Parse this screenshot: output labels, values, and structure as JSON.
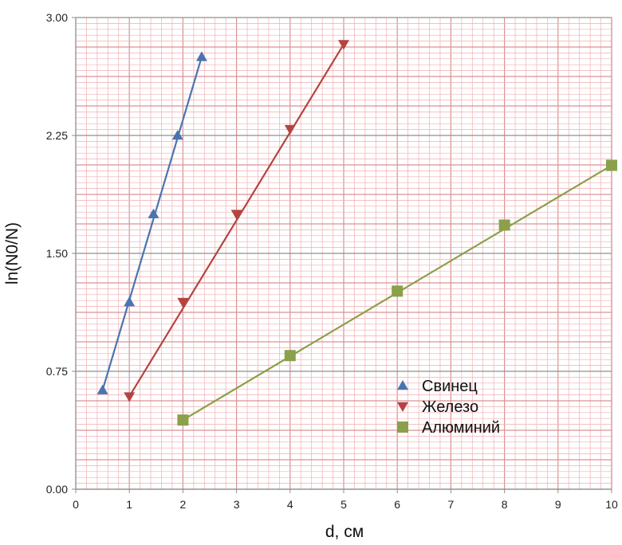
{
  "chart_data": {
    "type": "scatter",
    "xlabel": "d, см",
    "ylabel": "ln(N0/N)",
    "xlim": [
      0,
      10
    ],
    "ylim": [
      0,
      3
    ],
    "x_ticks": [
      "0",
      "1",
      "2",
      "3",
      "4",
      "5",
      "6",
      "7",
      "8",
      "9",
      "10"
    ],
    "y_ticks": [
      "0.00",
      "0.75",
      "1.50",
      "2.25",
      "3.00"
    ],
    "grid": "graph-paper",
    "legend_position": "lower-right",
    "series": [
      {
        "name": "Свинец",
        "marker": "triangle-up",
        "color": "#4a74b0",
        "points": [
          [
            0.5,
            0.63
          ],
          [
            1.0,
            1.19
          ],
          [
            1.45,
            1.75
          ],
          [
            1.9,
            2.25
          ],
          [
            2.35,
            2.75
          ]
        ],
        "trend": [
          [
            0.5,
            0.63
          ],
          [
            2.35,
            2.75
          ]
        ]
      },
      {
        "name": "Железо",
        "marker": "triangle-down",
        "color": "#b44440",
        "points": [
          [
            1.0,
            0.59
          ],
          [
            2.0,
            1.19
          ],
          [
            3.0,
            1.75
          ],
          [
            4.0,
            2.29
          ],
          [
            5.0,
            2.83
          ]
        ],
        "trend": [
          [
            1.0,
            0.59
          ],
          [
            5.0,
            2.83
          ]
        ]
      },
      {
        "name": "Алюминий",
        "marker": "square",
        "color": "#8aa04a",
        "points": [
          [
            2.0,
            0.44
          ],
          [
            4.0,
            0.85
          ],
          [
            6.0,
            1.26
          ],
          [
            8.0,
            1.68
          ],
          [
            10.0,
            2.06
          ]
        ],
        "trend": [
          [
            2.0,
            0.44
          ],
          [
            10.0,
            2.06
          ]
        ]
      }
    ]
  },
  "colors": {
    "minor_grid": "#f2aeb0",
    "major_grid": "#d99294",
    "axis": "#8f8f8f"
  }
}
